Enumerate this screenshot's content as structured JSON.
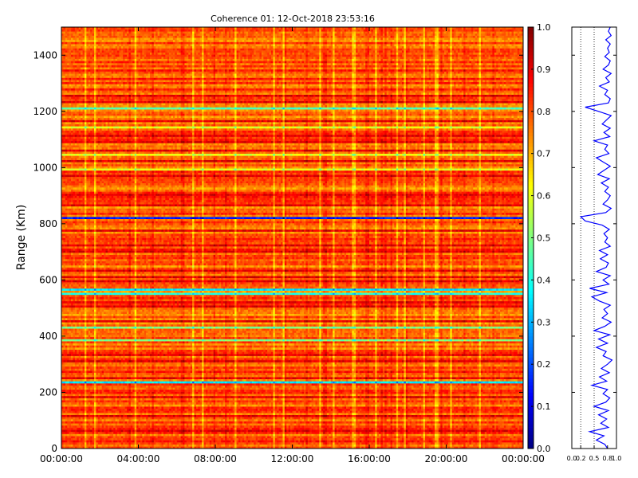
{
  "chart_data": [
    {
      "type": "heatmap",
      "title": "Coherence 01: 12-Oct-2018 23:53:16",
      "xlabel": "",
      "ylabel": "Range (Km)",
      "x_ticks": [
        "00:00:00",
        "04:00:00",
        "08:00:00",
        "12:00:00",
        "16:00:00",
        "20:00:00",
        "00:00:00"
      ],
      "xlim": [
        "00:00:00",
        "24:00:00"
      ],
      "y_ticks": [
        0,
        200,
        400,
        600,
        800,
        1000,
        1200,
        1400
      ],
      "ylim": [
        0,
        1500
      ],
      "range_step_km": 7.5,
      "colormap": "jet",
      "clim": [
        0,
        1
      ],
      "colorbar_ticks": [
        0.0,
        0.1,
        0.2,
        0.3,
        0.4,
        0.5,
        0.6,
        0.7,
        0.8,
        0.9,
        1.0
      ],
      "colorbar_tick_labels": [
        "0.0",
        "0.1",
        "0.2",
        "0.3",
        "0.4",
        "0.5",
        "0.6",
        "0.7",
        "0.8",
        "0.9",
        "1.0"
      ],
      "low_coherence_bands_km": [
        {
          "range": 820,
          "value": 0.15
        },
        {
          "range": 565,
          "value": 0.35
        },
        {
          "range": 545,
          "value": 0.4
        },
        {
          "range": 230,
          "value": 0.35
        },
        {
          "range": 1205,
          "value": 0.45
        },
        {
          "range": 425,
          "value": 0.5
        },
        {
          "range": 380,
          "value": 0.5
        },
        {
          "range": 1040,
          "value": 0.6
        },
        {
          "range": 990,
          "value": 0.6
        },
        {
          "range": 1140,
          "value": 0.6
        }
      ],
      "high_coherence_bands_km": [
        1250,
        1230,
        1165,
        1110,
        1090,
        1060,
        1020,
        970,
        900,
        860,
        770,
        720,
        700,
        630,
        610,
        590,
        520,
        500,
        450,
        330,
        310,
        250,
        180,
        110,
        60
      ]
    },
    {
      "type": "line",
      "title": "",
      "xlabel": "",
      "ylabel": "",
      "xlim": [
        0,
        1
      ],
      "ylim": [
        0,
        1500
      ],
      "x_tick_labels": [
        "0.0",
        "0.2",
        "0.5",
        "0.8",
        "1.0"
      ],
      "x_ticks": [
        0,
        0.2,
        0.5,
        0.8,
        1.0
      ],
      "dotted_reference_lines": [
        0.2,
        0.5
      ],
      "line_color": "#0000ff",
      "series": [
        {
          "range_km": [
            0,
            15,
            30,
            45,
            60,
            75,
            90,
            105,
            120,
            135,
            150,
            165,
            180,
            195,
            210,
            225,
            240,
            255,
            270,
            285,
            300,
            315,
            330,
            345,
            360,
            375,
            390,
            405,
            420,
            435,
            450,
            465,
            480,
            495,
            510,
            525,
            540,
            555,
            570,
            585,
            600,
            615,
            630,
            645,
            660,
            675,
            690,
            705,
            720,
            735,
            750,
            765,
            780,
            795,
            810,
            825,
            840,
            855,
            870,
            885,
            900,
            915,
            930,
            945,
            960,
            975,
            990,
            1005,
            1020,
            1035,
            1050,
            1065,
            1080,
            1095,
            1110,
            1125,
            1140,
            1155,
            1170,
            1185,
            1200,
            1215,
            1230,
            1245,
            1260,
            1275,
            1290,
            1305,
            1320,
            1335,
            1350,
            1365,
            1380,
            1395,
            1410,
            1425,
            1440,
            1455,
            1470,
            1485,
            1500
          ],
          "coherence": [
            0.8,
            0.74,
            0.55,
            0.72,
            0.4,
            0.82,
            0.65,
            0.78,
            0.6,
            0.82,
            0.5,
            0.76,
            0.85,
            0.7,
            0.8,
            0.45,
            0.78,
            0.62,
            0.84,
            0.66,
            0.8,
            0.9,
            0.7,
            0.77,
            0.55,
            0.8,
            0.6,
            0.85,
            0.5,
            0.74,
            0.88,
            0.68,
            0.8,
            0.72,
            0.86,
            0.62,
            0.45,
            0.78,
            0.4,
            0.83,
            0.7,
            0.86,
            0.55,
            0.77,
            0.82,
            0.64,
            0.8,
            0.62,
            0.86,
            0.74,
            0.8,
            0.72,
            0.84,
            0.68,
            0.3,
            0.2,
            0.76,
            0.88,
            0.7,
            0.8,
            0.86,
            0.74,
            0.82,
            0.66,
            0.84,
            0.58,
            0.72,
            0.86,
            0.7,
            0.55,
            0.83,
            0.74,
            0.8,
            0.5,
            0.85,
            0.72,
            0.86,
            0.68,
            0.78,
            0.88,
            0.6,
            0.3,
            0.82,
            0.86,
            0.74,
            0.8,
            0.62,
            0.84,
            0.76,
            0.88,
            0.7,
            0.82,
            0.86,
            0.74,
            0.84,
            0.8,
            0.86,
            0.76,
            0.88,
            0.82,
            0.86
          ]
        }
      ]
    }
  ]
}
